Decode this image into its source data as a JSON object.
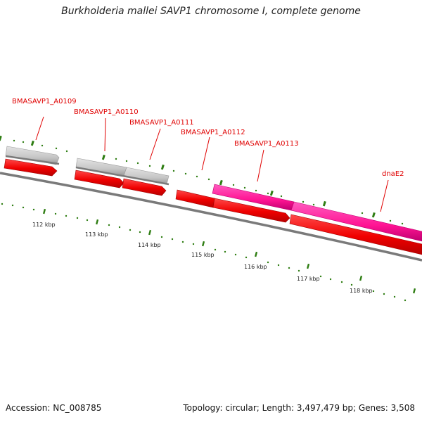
{
  "header": {
    "title": "Burkholderia mallei SAVP1 chromosome I, complete genome"
  },
  "footer": {
    "accession": "Accession: NC_008785",
    "summary": "Topology: circular; Length: 3,497,479 bp; Genes: 3,508"
  },
  "colors": {
    "forward_cds": "#ff0000",
    "reverse_cds": "#c0c0c0",
    "highlight_cds": "#ff1493",
    "backbone": "#808080",
    "tick": "#2e7d12",
    "label": "#e00000"
  },
  "genes": [
    {
      "name": "BMASAVP1_A0109"
    },
    {
      "name": "BMASAVP1_A0110"
    },
    {
      "name": "BMASAVP1_A0111"
    },
    {
      "name": "BMASAVP1_A0112"
    },
    {
      "name": "BMASAVP1_A0113"
    },
    {
      "name": "dnaE2"
    }
  ],
  "ruler": {
    "ticks": [
      "112 kbp",
      "113 kbp",
      "114 kbp",
      "115 kbp",
      "116 kbp",
      "117 kbp",
      "118 kbp"
    ]
  }
}
